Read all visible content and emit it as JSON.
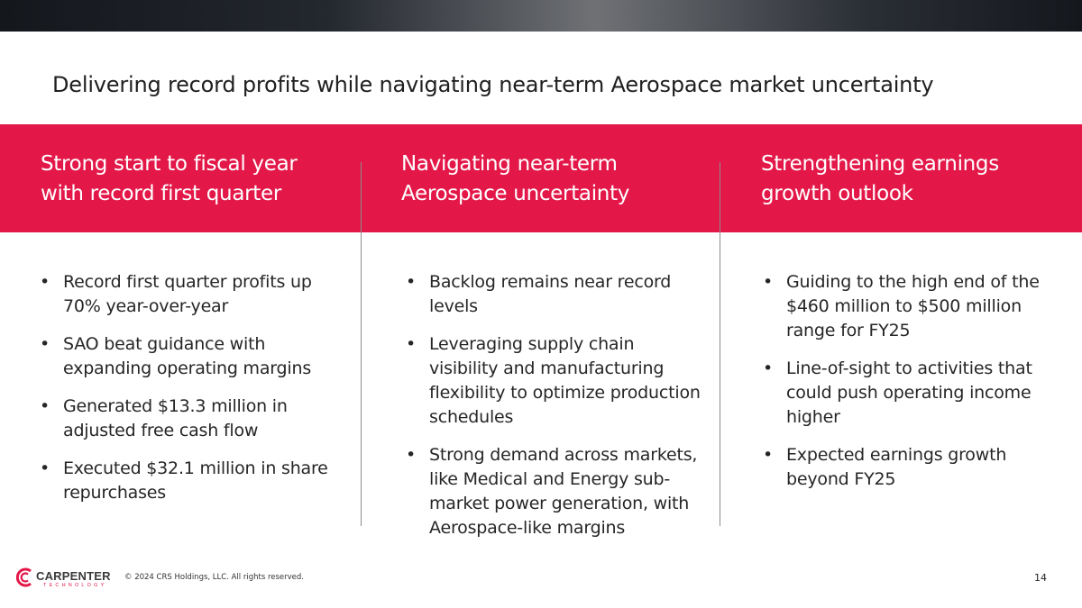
{
  "title": "Delivering record profits while navigating near-term Aerospace market uncertainty",
  "columns": [
    {
      "heading_line1": "Strong start to fiscal year",
      "heading_line2": "with record first quarter",
      "bullets": [
        "Record first quarter profits up 70% year-over-year",
        "SAO beat guidance with expanding operating margins",
        "Generated $13.3 million in adjusted free cash flow",
        "Executed $32.1 million in share repurchases"
      ]
    },
    {
      "heading_line1": "Navigating near-term",
      "heading_line2": "Aerospace uncertainty",
      "bullets": [
        "Backlog remains near record levels",
        "Leveraging supply chain visibility and manufacturing flexibility to optimize production schedules",
        "Strong demand across markets, like Medical and Energy sub-market power generation, with Aerospace-like margins"
      ]
    },
    {
      "heading_line1": "Strengthening earnings",
      "heading_line2": "growth outlook",
      "bullets": [
        "Guiding to the high end of the $460 million to $500 million range for FY25",
        "Line-of-sight to activities that could push operating income higher",
        "Expected earnings growth beyond FY25"
      ]
    }
  ],
  "footer": {
    "logo_name": "CARPENTER",
    "logo_sub": "TECHNOLOGY",
    "copyright": "© 2024 CRS Holdings, LLC. All rights reserved.",
    "page_number": "14"
  },
  "colors": {
    "accent": "#e31849",
    "topbar": "#1a1d22"
  },
  "icons": [
    "carpenter-logo-icon",
    "bullet-icon"
  ]
}
